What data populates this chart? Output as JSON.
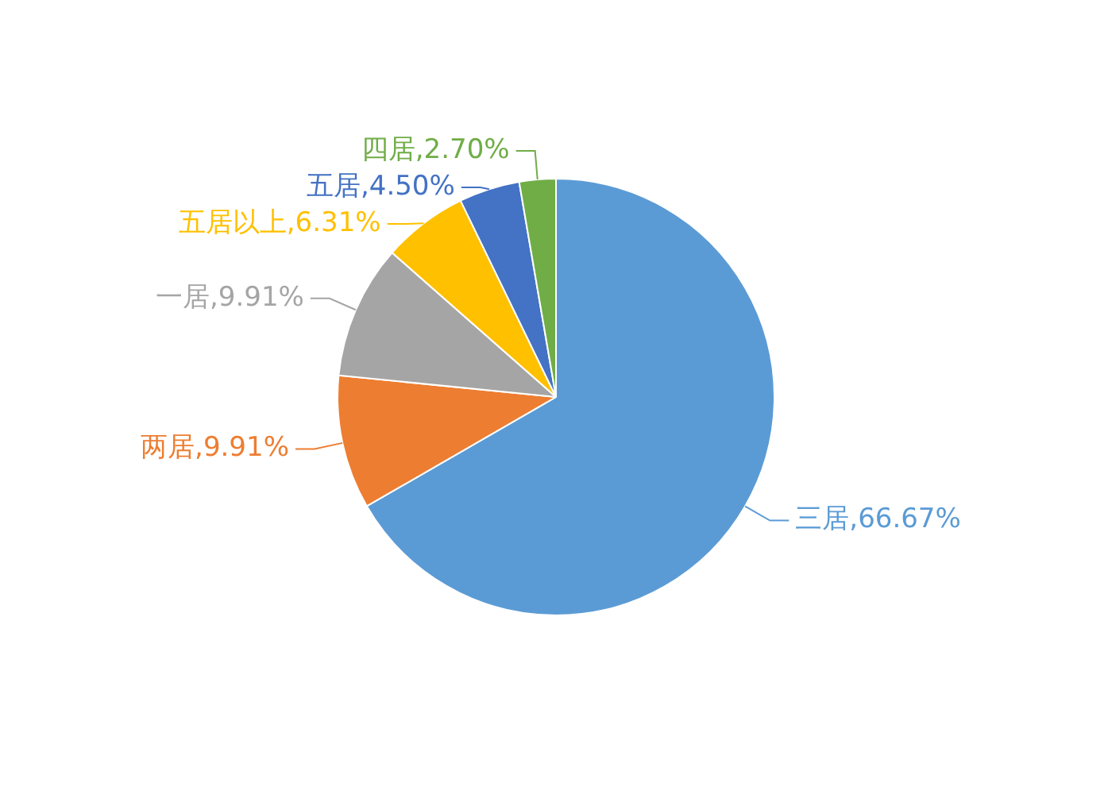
{
  "chart_data": {
    "type": "pie",
    "categories": [
      "三居",
      "两居",
      "一居",
      "五居以上",
      "五居",
      "四居"
    ],
    "values": [
      66.67,
      9.91,
      9.91,
      6.31,
      4.5,
      2.7
    ],
    "value_labels": [
      "66.67%",
      "9.91%",
      "9.91%",
      "6.31%",
      "4.50%",
      "2.70%"
    ],
    "colors": [
      "#5b9bd5",
      "#ed7d31",
      "#a5a5a5",
      "#ffc000",
      "#4472c4",
      "#70ad47"
    ],
    "legend": false
  }
}
